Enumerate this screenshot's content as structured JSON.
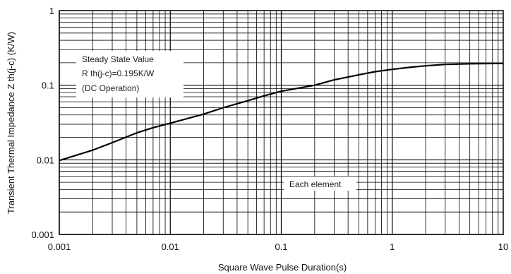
{
  "chart_data": {
    "type": "line",
    "title": "",
    "xlabel": "Square Wave Pulse Duration(s)",
    "ylabel": "Transient Thermal Impedance Z th(j-c) (K/W)",
    "xscale": "log",
    "yscale": "log",
    "xlim": [
      0.001,
      10
    ],
    "ylim": [
      0.001,
      1
    ],
    "grid": true,
    "legend": "none",
    "x_ticks": [
      "0.001",
      "0.01",
      "0.1",
      "1",
      "10"
    ],
    "y_ticks": [
      "0.001",
      "0.01",
      "0.1",
      "1"
    ],
    "series": [
      {
        "x": [
          0.001,
          0.002,
          0.003,
          0.005,
          0.007,
          0.01,
          0.02,
          0.03,
          0.05,
          0.07,
          0.1,
          0.2,
          0.3,
          0.5,
          0.7,
          1,
          1.5,
          2,
          3,
          5,
          10
        ],
        "y": [
          0.0098,
          0.0135,
          0.017,
          0.023,
          0.027,
          0.031,
          0.041,
          0.05,
          0.062,
          0.072,
          0.083,
          0.1,
          0.118,
          0.138,
          0.152,
          0.163,
          0.175,
          0.182,
          0.19,
          0.194,
          0.196
        ]
      }
    ],
    "annotations": [
      "Steady State Value",
      "R th(j-c)=0.195K/W",
      "(DC Operation)",
      "Each element"
    ],
    "line_color": "#000000",
    "grid_color": "#000000"
  }
}
